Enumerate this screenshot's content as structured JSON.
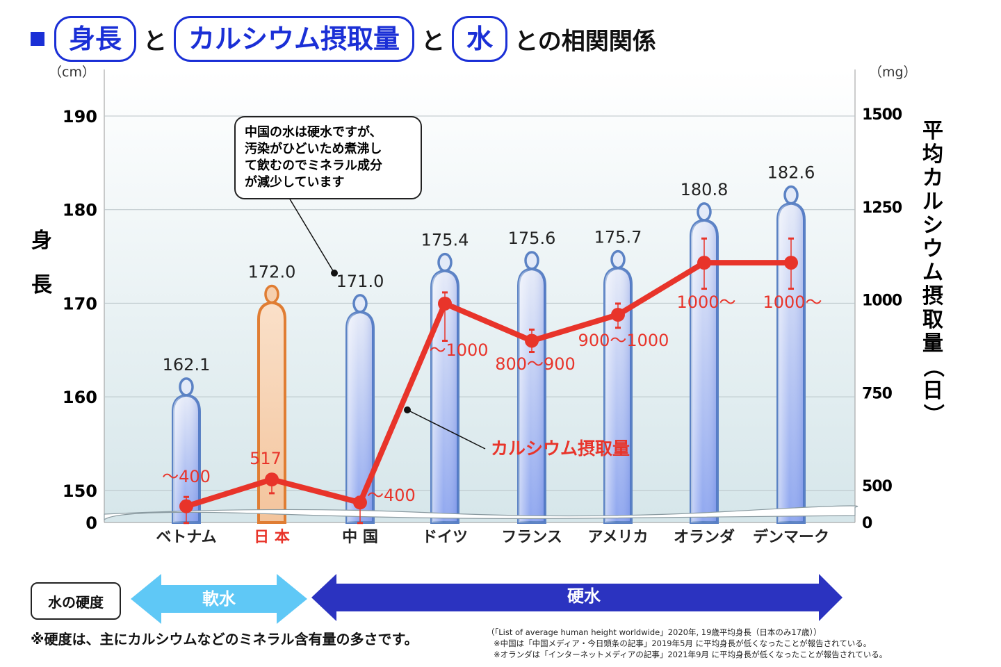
{
  "title": {
    "pill1": "身長",
    "conj1": "と",
    "pill2": "カルシウム摂取量",
    "conj2": "と",
    "pill3": "水",
    "tail": "との相関関係"
  },
  "chart_data": {
    "type": "bar+line",
    "categories": [
      "ベトナム",
      "日 本",
      "中 国",
      "ドイツ",
      "フランス",
      "アメリカ",
      "オランダ",
      "デンマーク"
    ],
    "highlight_category": "日 本",
    "series": [
      {
        "name": "身長",
        "axis": "left",
        "unit": "cm",
        "values": [
          162.1,
          172.0,
          171.0,
          175.4,
          175.6,
          175.7,
          180.8,
          182.6
        ],
        "labels": [
          "162.1",
          "172.0",
          "171.0",
          "175.4",
          "175.6",
          "175.7",
          "180.8",
          "182.6"
        ]
      },
      {
        "name": "カルシウム摂取量",
        "axis": "right",
        "unit": "mg",
        "values": [
          445,
          517,
          455,
          990,
          890,
          960,
          1100,
          1100
        ],
        "range_low": [
          400,
          480,
          400,
          890,
          860,
          925,
          1030,
          1030
        ],
        "range_high": [
          470,
          517,
          470,
          1020,
          920,
          990,
          1165,
          1165
        ],
        "labels": [
          "～400",
          "517",
          "～400",
          "～1000",
          "800～900",
          "900～1000",
          "1000～",
          "1000～"
        ]
      }
    ],
    "y_left": {
      "unit_label": "（cm）",
      "ticks": [
        "190",
        "180",
        "170",
        "160",
        "150",
        "0"
      ],
      "tick_values": [
        190,
        180,
        170,
        160,
        150
      ],
      "title": [
        "身",
        "長"
      ]
    },
    "y_right": {
      "unit_label": "（mg）",
      "ticks": [
        "1500",
        "1250",
        "1000",
        "750",
        "500",
        "0"
      ],
      "tick_values": [
        1500,
        1250,
        1000,
        750,
        500
      ],
      "title": "平均カルシウム摂取量（日）"
    },
    "callouts": [
      {
        "text": [
          "中国の水は硬水ですが、",
          "汚染がひどいため煮沸し",
          "て飲むのでミネラル成分",
          "が減少しています"
        ]
      },
      {
        "text": "カルシウム摂取量"
      }
    ],
    "hardness": {
      "soft_label": "軟水",
      "hard_label": "硬水",
      "soft_categories": [
        "ベトナム",
        "日 本"
      ],
      "hard_categories": [
        "中 国",
        "ドイツ",
        "フランス",
        "アメリカ",
        "オランダ",
        "デンマーク"
      ]
    }
  },
  "legend_label": "水の硬度",
  "footnote": "※硬度は、主にカルシウムなどのミネラル含有量の多さです。",
  "sources": [
    "（「List of average human height worldwide」2020年, 19歳平均身長（日本のみ17歳））",
    "※中国は「中国メディア・今日頭条の記事」2019年5月 に平均身長が低くなったことが報告されている。",
    "※オランダは「インターネットメディアの記事」2021年9月 に平均身長が低くなったことが報告されている。"
  ],
  "colors": {
    "accent": "#1a2fd6",
    "line": "#e8342a",
    "bar_fill_top": "#dfe6f7",
    "bar_fill_bottom": "#8fa6ee",
    "bar_stroke": "#5b82c4",
    "highlight_fill": "#f6cfae",
    "highlight_stroke": "#e07d33",
    "soft_arrow": "#5fc8f6",
    "hard_arrow": "#2b33c0"
  }
}
